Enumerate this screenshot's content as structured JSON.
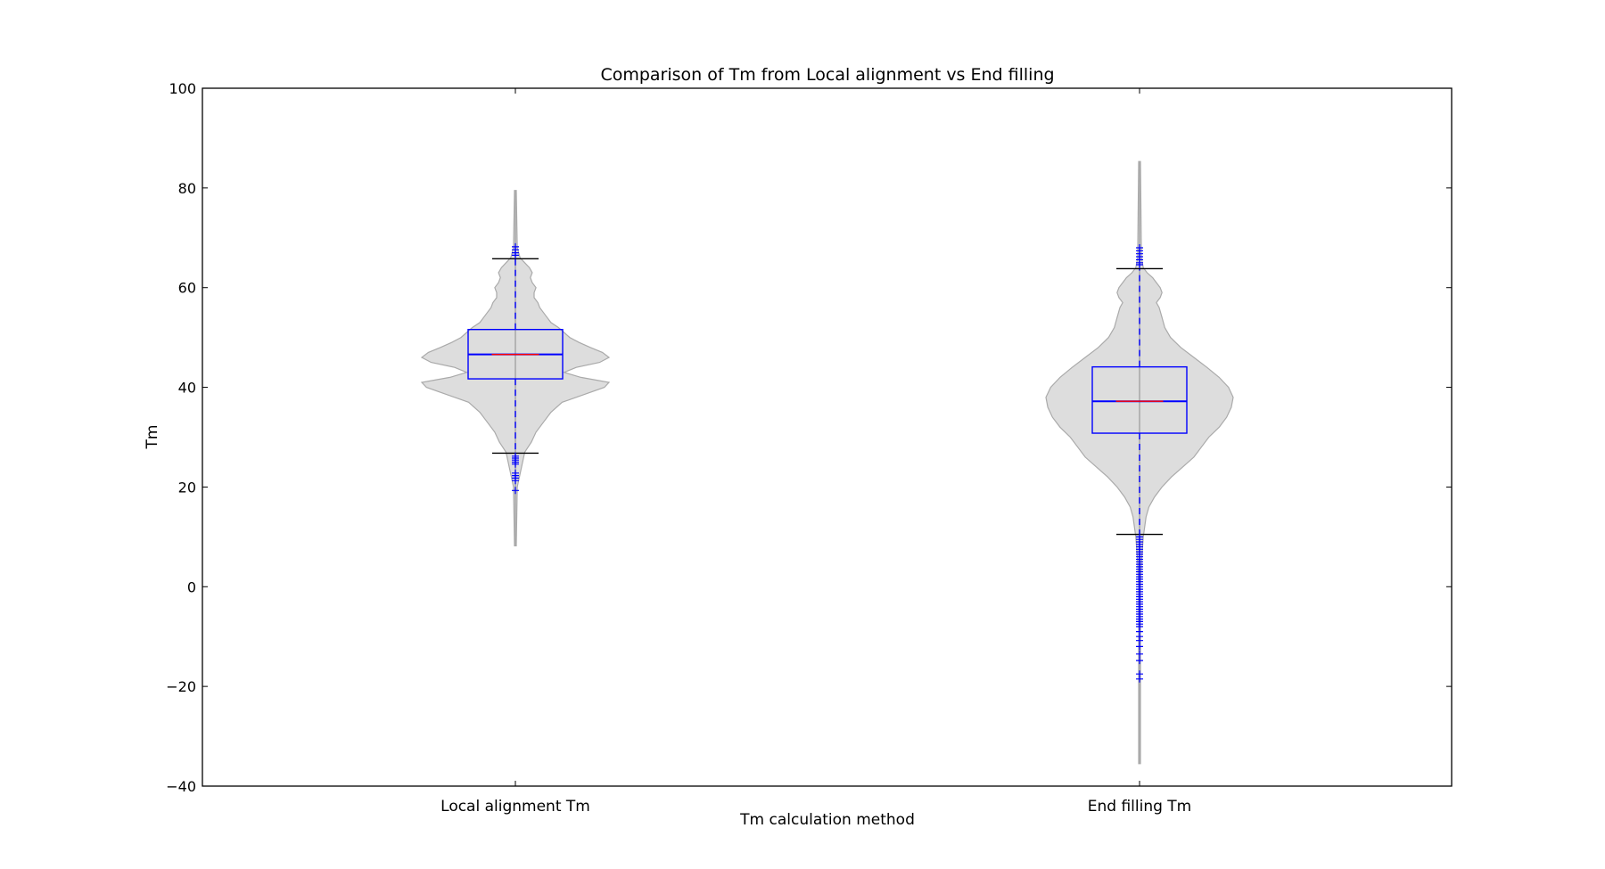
{
  "chart_data": {
    "type": "violin",
    "title": "Comparison of Tm from Local alignment vs End filling",
    "xlabel": "Tm calculation method",
    "ylabel": "Tm",
    "ylim": [
      -40,
      100
    ],
    "yticks": [
      -40,
      -20,
      0,
      20,
      40,
      60,
      80,
      100
    ],
    "ytick_labels": [
      "−40",
      "−20",
      "0",
      "20",
      "40",
      "60",
      "80",
      "100"
    ],
    "categories": [
      "Local alignment Tm",
      "End filling Tm"
    ],
    "grid": false,
    "colors": {
      "violin_fill": "#dddddd",
      "violin_edge": "#aaaaaa",
      "box": "#0000ff",
      "median": "#ff0000",
      "whisker_cap": "#000000",
      "flier": "#0000ff"
    },
    "series": [
      {
        "name": "Local alignment Tm",
        "min": 8.2,
        "max": 79.5,
        "q1": 41.7,
        "median": 46.6,
        "q3": 51.6,
        "whisker_low": 26.8,
        "whisker_high": 65.8,
        "fliers": [
          68.2,
          67.6,
          67.0,
          66.5,
          26.2,
          25.8,
          25.4,
          25.0,
          24.6,
          22.8,
          22.3,
          21.8,
          21.3,
          19.3
        ],
        "density": [
          [
            8.2,
            0.01
          ],
          [
            20,
            0.02
          ],
          [
            27,
            0.1
          ],
          [
            29,
            0.17
          ],
          [
            31,
            0.22
          ],
          [
            33,
            0.3
          ],
          [
            35,
            0.38
          ],
          [
            37,
            0.5
          ],
          [
            39,
            0.8
          ],
          [
            40,
            0.95
          ],
          [
            41,
            1.0
          ],
          [
            42,
            0.7
          ],
          [
            43,
            0.52
          ],
          [
            44,
            0.65
          ],
          [
            45,
            0.9
          ],
          [
            46,
            1.0
          ],
          [
            47,
            0.93
          ],
          [
            48,
            0.8
          ],
          [
            49,
            0.68
          ],
          [
            50,
            0.58
          ],
          [
            51,
            0.52
          ],
          [
            52,
            0.46
          ],
          [
            53,
            0.38
          ],
          [
            54,
            0.34
          ],
          [
            55,
            0.3
          ],
          [
            56,
            0.26
          ],
          [
            57,
            0.24
          ],
          [
            58,
            0.2
          ],
          [
            59,
            0.2
          ],
          [
            60,
            0.22
          ],
          [
            61,
            0.18
          ],
          [
            62,
            0.16
          ],
          [
            63,
            0.18
          ],
          [
            64,
            0.15
          ],
          [
            65,
            0.1
          ],
          [
            66,
            0.05
          ],
          [
            68,
            0.02
          ],
          [
            79.5,
            0.01
          ]
        ]
      },
      {
        "name": "End filling Tm",
        "min": -35.5,
        "max": 85.3,
        "q1": 30.8,
        "median": 37.2,
        "q3": 44.1,
        "whisker_low": 10.5,
        "whisker_high": 63.8,
        "fliers": [
          68.0,
          67.4,
          66.8,
          66.2,
          65.6,
          65.0,
          64.6,
          10.0,
          9.5,
          9.0,
          8.5,
          8.0,
          7.5,
          7.0,
          6.5,
          6.0,
          5.5,
          5.0,
          4.5,
          4.0,
          3.5,
          3.0,
          2.5,
          2.0,
          1.5,
          1.0,
          0.5,
          0.0,
          -0.5,
          -1.0,
          -1.5,
          -2.0,
          -2.5,
          -3.0,
          -3.5,
          -4.0,
          -4.5,
          -5.0,
          -5.5,
          -6.0,
          -6.5,
          -7.0,
          -7.5,
          -8.0,
          -9.0,
          -10.0,
          -10.8,
          -12.0,
          -13.5,
          -14.8,
          -17.5,
          -18.5
        ],
        "density": [
          [
            -35.5,
            0.01
          ],
          [
            0,
            0.01
          ],
          [
            5,
            0.02
          ],
          [
            10,
            0.04
          ],
          [
            14,
            0.07
          ],
          [
            16,
            0.1
          ],
          [
            18,
            0.16
          ],
          [
            20,
            0.24
          ],
          [
            22,
            0.34
          ],
          [
            24,
            0.46
          ],
          [
            26,
            0.58
          ],
          [
            28,
            0.66
          ],
          [
            30,
            0.74
          ],
          [
            32,
            0.85
          ],
          [
            34,
            0.93
          ],
          [
            36,
            0.98
          ],
          [
            38,
            1.0
          ],
          [
            40,
            0.95
          ],
          [
            42,
            0.85
          ],
          [
            44,
            0.72
          ],
          [
            46,
            0.58
          ],
          [
            48,
            0.44
          ],
          [
            50,
            0.33
          ],
          [
            52,
            0.27
          ],
          [
            54,
            0.24
          ],
          [
            56,
            0.21
          ],
          [
            57,
            0.18
          ],
          [
            58,
            0.22
          ],
          [
            59,
            0.24
          ],
          [
            60,
            0.22
          ],
          [
            61,
            0.18
          ],
          [
            62,
            0.14
          ],
          [
            63,
            0.08
          ],
          [
            64,
            0.04
          ],
          [
            66,
            0.02
          ],
          [
            85.3,
            0.01
          ]
        ]
      }
    ]
  }
}
